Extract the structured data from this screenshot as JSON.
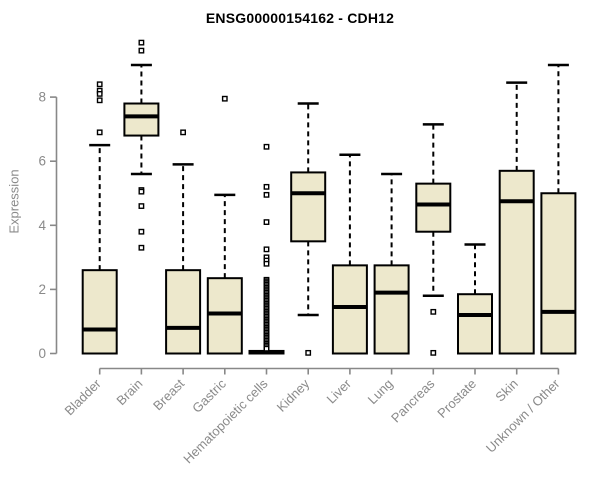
{
  "title": "ENSG00000154162 - CDH12",
  "chart_data": {
    "type": "boxplot",
    "title": "ENSG00000154162 - CDH12",
    "xlabel": "",
    "ylabel": "Expression",
    "ylim": [
      0,
      9.8
    ],
    "y_axis_span": [
      0,
      8
    ],
    "yticks": [
      0,
      2,
      4,
      6,
      8
    ],
    "grid": false,
    "legend": "none",
    "colors": {
      "box_fill": "#ede8cc",
      "box_stroke": "#000000",
      "median": "#000000",
      "whisker": "#000000",
      "axis": "#888888",
      "tick_text": "#8a8a8a",
      "title_text": "#000000"
    },
    "categories": [
      "Bladder",
      "Brain",
      "Breast",
      "Gastric",
      "Hematopoietic cells",
      "Kidney",
      "Liver",
      "Lung",
      "Pancreas",
      "Prostate",
      "Skin",
      "Unknown / Other"
    ],
    "boxes": [
      {
        "category": "Bladder",
        "whisker_low": 0,
        "q1": 0,
        "median": 0.75,
        "q3": 2.6,
        "whisker_high": 6.5,
        "outliers": [
          8.4,
          8.2,
          8.1,
          7.9,
          6.9
        ]
      },
      {
        "category": "Brain",
        "whisker_low": 5.6,
        "q1": 6.8,
        "median": 7.4,
        "q3": 7.8,
        "whisker_high": 9.0,
        "outliers": [
          9.7,
          9.45,
          5.1,
          5.05,
          4.6,
          3.8,
          3.3
        ]
      },
      {
        "category": "Breast",
        "whisker_low": 0,
        "q1": 0,
        "median": 0.8,
        "q3": 2.6,
        "whisker_high": 5.9,
        "outliers": [
          6.9
        ]
      },
      {
        "category": "Gastric",
        "whisker_low": 0,
        "q1": 0,
        "median": 1.25,
        "q3": 2.35,
        "whisker_high": 4.95,
        "outliers": [
          7.95
        ]
      },
      {
        "category": "Hematopoietic cells",
        "whisker_low": 0,
        "q1": 0,
        "median": 0.03,
        "q3": 0.08,
        "whisker_high": 0.08,
        "outliers": [
          6.45,
          5.2,
          4.95,
          4.1,
          3.25,
          3.0,
          2.9,
          2.8,
          2.3,
          2.25,
          2.2,
          2.15,
          2.1,
          2.05,
          2.0,
          1.95,
          1.9,
          1.85,
          1.8,
          1.75,
          1.7,
          1.65,
          1.6,
          1.55,
          1.5,
          1.45,
          1.4,
          1.35,
          1.3,
          1.25,
          1.2,
          1.15,
          1.1,
          1.05,
          1.0,
          0.95,
          0.9,
          0.85,
          0.8,
          0.75,
          0.7,
          0.65,
          0.6,
          0.55,
          0.5,
          0.45,
          0.4,
          0.35,
          0.3,
          0.25,
          0.2,
          0.15
        ]
      },
      {
        "category": "Kidney",
        "whisker_low": 1.2,
        "q1": 3.5,
        "median": 5.0,
        "q3": 5.65,
        "whisker_high": 7.8,
        "outliers": [
          0.02
        ]
      },
      {
        "category": "Liver",
        "whisker_low": 0,
        "q1": 0,
        "median": 1.45,
        "q3": 2.75,
        "whisker_high": 6.2,
        "outliers": []
      },
      {
        "category": "Lung",
        "whisker_low": 0,
        "q1": 0,
        "median": 1.9,
        "q3": 2.75,
        "whisker_high": 5.6,
        "outliers": []
      },
      {
        "category": "Pancreas",
        "whisker_low": 1.8,
        "q1": 3.8,
        "median": 4.65,
        "q3": 5.3,
        "whisker_high": 7.15,
        "outliers": [
          1.3,
          0.02
        ]
      },
      {
        "category": "Prostate",
        "whisker_low": 0,
        "q1": 0,
        "median": 1.2,
        "q3": 1.85,
        "whisker_high": 3.4,
        "outliers": []
      },
      {
        "category": "Skin",
        "whisker_low": 0,
        "q1": 0,
        "median": 4.75,
        "q3": 5.7,
        "whisker_high": 8.45,
        "outliers": []
      },
      {
        "category": "Unknown / Other",
        "whisker_low": 0,
        "q1": 0,
        "median": 1.3,
        "q3": 5.0,
        "whisker_high": 9.0,
        "outliers": []
      }
    ]
  }
}
